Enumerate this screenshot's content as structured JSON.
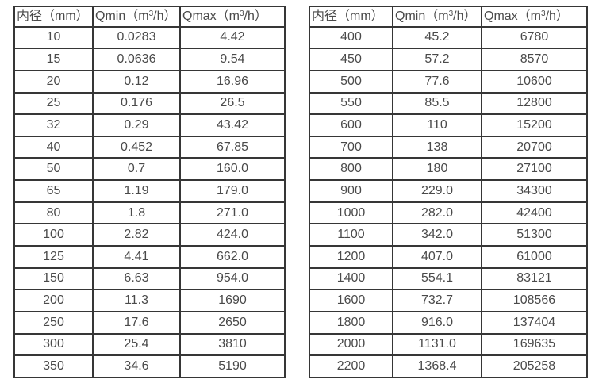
{
  "colors": {
    "background": "#ffffff",
    "border": "#363636",
    "text": "#4a4a4a"
  },
  "tables": [
    {
      "name": "flow-spec-table-small-diameters",
      "headers": [
        "内径（mm）",
        "Qmin（m³/h）",
        "Qmax（m³/h）"
      ],
      "rows": [
        [
          "10",
          "0.0283",
          "4.42"
        ],
        [
          "15",
          "0.0636",
          "9.54"
        ],
        [
          "20",
          "0.12",
          "16.96"
        ],
        [
          "25",
          "0.176",
          "26.5"
        ],
        [
          "32",
          "0.29",
          "43.42"
        ],
        [
          "40",
          "0.452",
          "67.85"
        ],
        [
          "50",
          "0.7",
          "160.0"
        ],
        [
          "65",
          "1.19",
          "179.0"
        ],
        [
          "80",
          "1.8",
          "271.0"
        ],
        [
          "100",
          "2.82",
          "424.0"
        ],
        [
          "125",
          "4.41",
          "662.0"
        ],
        [
          "150",
          "6.63",
          "954.0"
        ],
        [
          "200",
          "11.3",
          "1690"
        ],
        [
          "250",
          "17.6",
          "2650"
        ],
        [
          "300",
          "25.4",
          "3810"
        ],
        [
          "350",
          "34.6",
          "5190"
        ]
      ]
    },
    {
      "name": "flow-spec-table-large-diameters",
      "headers": [
        "内径（mm）",
        "Qmin（m³/h）",
        "Qmax（m³/h）"
      ],
      "rows": [
        [
          "400",
          "45.2",
          "6780"
        ],
        [
          "450",
          "57.2",
          "8570"
        ],
        [
          "500",
          "77.6",
          "10600"
        ],
        [
          "550",
          "85.5",
          "12800"
        ],
        [
          "600",
          "110",
          "15200"
        ],
        [
          "700",
          "138",
          "20700"
        ],
        [
          "800",
          "180",
          "27100"
        ],
        [
          "900",
          "229.0",
          "34300"
        ],
        [
          "1000",
          "282.0",
          "42400"
        ],
        [
          "1100",
          "342.0",
          "51300"
        ],
        [
          "1200",
          "407.0",
          "61000"
        ],
        [
          "1400",
          "554.1",
          "83121"
        ],
        [
          "1600",
          "732.7",
          "108566"
        ],
        [
          "1800",
          "916.0",
          "137404"
        ],
        [
          "2000",
          "1131.0",
          "169635"
        ],
        [
          "2200",
          "1368.4",
          "205258"
        ]
      ]
    }
  ]
}
